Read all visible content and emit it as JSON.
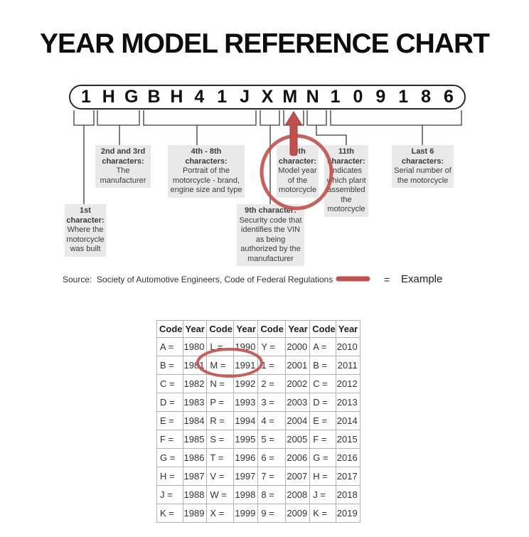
{
  "title": "YEAR MODEL REFERENCE CHART",
  "vin": {
    "characters": [
      "1",
      "H",
      "G",
      "B",
      "H",
      "4",
      "1",
      "J",
      "X",
      "M",
      "N",
      "1",
      "0",
      "9",
      "1",
      "8",
      "6"
    ]
  },
  "callouts": {
    "first": {
      "title": "1st character:",
      "desc": "Where the motorcycle was built"
    },
    "second_third": {
      "title": "2nd and 3rd characters:",
      "desc": "The manufacturer"
    },
    "fourth_eighth": {
      "title": "4th - 8th characters:",
      "desc": "Portrait of the motorcycle - brand, engine size and type"
    },
    "ninth": {
      "title": "9th character:",
      "desc": "Security code that identifies the VIN as being authorized by the manufacturer"
    },
    "tenth": {
      "title": "10th character:",
      "desc": "Model year of the motorcycle"
    },
    "eleventh": {
      "title": "11th character:",
      "desc": "Indicates which plant assembled the motorcycle"
    },
    "last_six": {
      "title": "Last 6 characters:",
      "desc": "Serial number of the motorcycle"
    }
  },
  "source_line": "Source:  Society of Automotive Engineers, Code of Federal Regulations",
  "legend": {
    "equals_sign": "=",
    "label": "Example"
  },
  "year_table": {
    "headers": [
      "Code",
      "Year",
      "Code",
      "Year",
      "Code",
      "Year",
      "Code",
      "Year"
    ],
    "rows": [
      [
        "A =",
        "1980",
        "L =",
        "1990",
        "Y =",
        "2000",
        "A =",
        "2010"
      ],
      [
        "B =",
        "1981",
        "M =",
        "1991",
        "1 =",
        "2001",
        "B =",
        "2011"
      ],
      [
        "C =",
        "1982",
        "N =",
        "1992",
        "2 =",
        "2002",
        "C =",
        "2012"
      ],
      [
        "D =",
        "1983",
        "P =",
        "1993",
        "3 =",
        "2003",
        "D =",
        "2013"
      ],
      [
        "E =",
        "1984",
        "R =",
        "1994",
        "4 =",
        "2004",
        "E =",
        "2014"
      ],
      [
        "F =",
        "1985",
        "S =",
        "1995",
        "5 =",
        "2005",
        "F =",
        "2015"
      ],
      [
        "G =",
        "1986",
        "T =",
        "1996",
        "6 =",
        "2006",
        "G =",
        "2016"
      ],
      [
        "H =",
        "1987",
        "V =",
        "1997",
        "7 =",
        "2007",
        "H =",
        "2017"
      ],
      [
        "J =",
        "1988",
        "W =",
        "1998",
        "8 =",
        "2008",
        "J =",
        "2018"
      ],
      [
        "K =",
        "1989",
        "X =",
        "1999",
        "9 =",
        "2009",
        "K =",
        "2019"
      ]
    ]
  },
  "highlights": {
    "vin_highlight_char": "M",
    "table_highlight": "M = 1991"
  },
  "colors": {
    "accent_red": "#c0504d",
    "callout_bg": "#e9e9e9",
    "line": "#3a3a3a"
  }
}
